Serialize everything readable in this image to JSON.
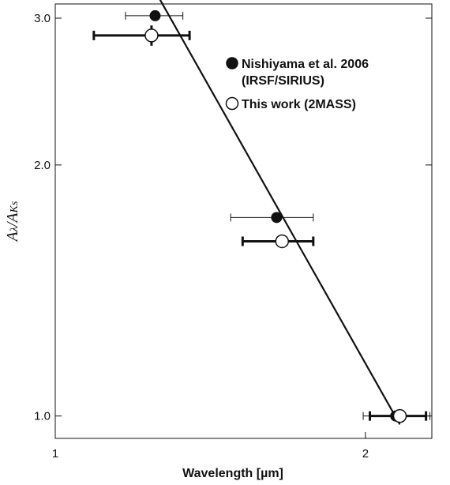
{
  "chart_data": {
    "type": "scatter",
    "x_scale": "log",
    "y_scale": "log",
    "xlim": [
      1.0,
      2.32
    ],
    "ylim": [
      0.94,
      3.12
    ],
    "xlabel": "Wavelength [µm]",
    "ylabel": {
      "main_a": "A",
      "sub_a": "λ",
      "slash": "/",
      "main_b": "A",
      "sub_b": "Ks"
    },
    "x_ticks": [
      {
        "value": 1,
        "label": "1"
      },
      {
        "value": 2,
        "label": "2"
      }
    ],
    "y_ticks": [
      {
        "value": 1.0,
        "label": "1.0"
      },
      {
        "value": 2.0,
        "label": "2.0"
      },
      {
        "value": 3.0,
        "label": "3.0"
      }
    ],
    "series": [
      {
        "name": "Nishiyama et al. 2006",
        "name_line2": "(IRSF/SIRIUS)",
        "marker": "filled-circle",
        "points": [
          {
            "x": 1.25,
            "y": 3.02,
            "xerr": [
              1.17,
              1.33
            ]
          },
          {
            "x": 1.64,
            "y": 1.73,
            "xerr": [
              1.48,
              1.78
            ]
          },
          {
            "x": 2.14,
            "y": 1.0,
            "xerr": [
              1.99,
              2.31
            ]
          }
        ]
      },
      {
        "name": "This work (2MASS)",
        "marker": "open-circle",
        "points": [
          {
            "x": 1.24,
            "y": 2.86,
            "xerr": [
              1.09,
              1.35
            ],
            "yerr": [
              2.78,
              2.94
            ]
          },
          {
            "x": 1.66,
            "y": 1.62,
            "xerr": [
              1.52,
              1.78
            ]
          },
          {
            "x": 2.16,
            "y": 1.0,
            "xerr": [
              2.02,
              2.29
            ]
          }
        ]
      }
    ],
    "fit_line": [
      {
        "x": 1.23,
        "y": 3.35
      },
      {
        "x": 2.16,
        "y": 0.977
      }
    ]
  }
}
